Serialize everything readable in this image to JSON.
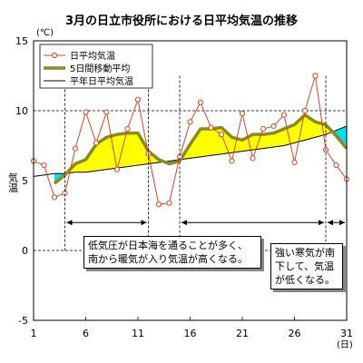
{
  "chart_data": {
    "type": "line",
    "title": "3月の日立市役所における日平均気温の推移",
    "y_unit": "(℃)",
    "x_unit": "(日)",
    "ylabel": "気温",
    "xlim": [
      1,
      31
    ],
    "ylim": [
      -5,
      15
    ],
    "x_ticks": [
      "1",
      "6",
      "11",
      "16",
      "21",
      "26",
      "31"
    ],
    "y_ticks": [
      "15",
      "10",
      "5",
      "0",
      "-5"
    ],
    "x": [
      1,
      2,
      3,
      4,
      5,
      6,
      7,
      8,
      9,
      10,
      11,
      12,
      13,
      14,
      15,
      16,
      17,
      18,
      19,
      20,
      21,
      22,
      23,
      24,
      25,
      26,
      27,
      28,
      29,
      30,
      31
    ],
    "series": [
      {
        "name": "日平均気温",
        "color": "#dd4422",
        "values": [
          6.4,
          6.1,
          3.8,
          4.1,
          7.3,
          9.9,
          7.7,
          9.9,
          5.8,
          8.7,
          10.8,
          6.9,
          3.3,
          3.4,
          6.7,
          9.2,
          10.6,
          8.8,
          8.3,
          6.4,
          9.8,
          6.6,
          8.7,
          8.9,
          9.7,
          6.3,
          10.0,
          12.5,
          7.2,
          6.1,
          5.1
        ]
      },
      {
        "name": "5日間移動平均",
        "color": "#8a8a1e",
        "values": [
          null,
          null,
          4.8,
          5.4,
          6.2,
          6.5,
          7.6,
          8.1,
          8.3,
          8.4,
          8.4,
          7.1,
          6.5,
          6.2,
          6.4,
          7.6,
          8.7,
          8.7,
          8.8,
          8.1,
          7.9,
          8.3,
          8.3,
          8.4,
          8.7,
          9.0,
          9.7,
          9.2,
          9.0,
          8.2,
          7.3
        ]
      },
      {
        "name": "平年日平均気温",
        "color": "#000000",
        "values": [
          5.3,
          5.4,
          5.5,
          5.5,
          5.6,
          5.6,
          5.7,
          5.8,
          5.9,
          6.0,
          6.1,
          6.2,
          6.3,
          6.4,
          6.5,
          6.6,
          6.7,
          6.8,
          6.9,
          7.0,
          7.1,
          7.2,
          7.3,
          7.4,
          7.5,
          7.7,
          7.9,
          8.1,
          8.3,
          8.6,
          8.9
        ]
      }
    ],
    "fill_colors": {
      "above": "#ffff00",
      "below": "#00e0f0"
    },
    "grid": {
      "dashed_y": [
        10,
        0
      ]
    },
    "period_arrows": [
      [
        4,
        12
      ],
      [
        15,
        29
      ],
      [
        29,
        31
      ]
    ],
    "annotations": [
      "低気圧が日本海を通ることが多く、\n南から暖気が入り気温が高くなる。",
      "強い寒気が南\n下して、気温\nが低くなる。"
    ],
    "legend_position": "top-left"
  }
}
